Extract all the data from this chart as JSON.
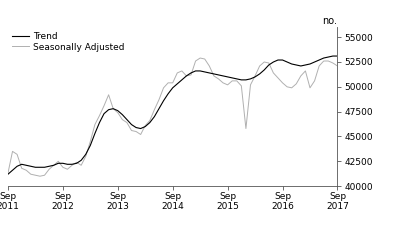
{
  "title": "",
  "ylabel_right": "no.",
  "ylim": [
    40000,
    56000
  ],
  "yticks": [
    40000,
    42500,
    45000,
    47500,
    50000,
    52500,
    55000
  ],
  "xlabel_dates": [
    "Sep\n2011",
    "Sep\n2012",
    "Sep\n2013",
    "Sep\n2014",
    "Sep\n2015",
    "Sep\n2016",
    "Sep\n2017"
  ],
  "trend_color": "#000000",
  "seasonal_color": "#b0b0b0",
  "trend_linewidth": 0.8,
  "seasonal_linewidth": 0.7,
  "legend_labels": [
    "Trend",
    "Seasonally Adjusted"
  ],
  "background_color": "#ffffff",
  "trend": [
    41200,
    41600,
    42000,
    42200,
    42100,
    42000,
    41900,
    41900,
    41900,
    42000,
    42100,
    42300,
    42300,
    42200,
    42200,
    42300,
    42600,
    43200,
    44100,
    45300,
    46400,
    47300,
    47700,
    47800,
    47600,
    47200,
    46700,
    46200,
    45900,
    45800,
    46000,
    46400,
    47000,
    47800,
    48600,
    49300,
    49900,
    50300,
    50700,
    51100,
    51400,
    51600,
    51600,
    51500,
    51400,
    51300,
    51200,
    51100,
    51000,
    50900,
    50800,
    50700,
    50700,
    50800,
    51000,
    51300,
    51700,
    52200,
    52500,
    52700,
    52700,
    52500,
    52300,
    52200,
    52100,
    52200,
    52300,
    52500,
    52700,
    52900,
    53000,
    53100,
    53100
  ],
  "seasonal": [
    41300,
    43500,
    43200,
    41800,
    41600,
    41200,
    41100,
    41000,
    41100,
    41700,
    42100,
    42500,
    41900,
    41700,
    42100,
    42400,
    42100,
    43000,
    44500,
    46200,
    47100,
    48100,
    49200,
    47800,
    47400,
    46700,
    46400,
    45600,
    45500,
    45200,
    46100,
    46600,
    47700,
    48700,
    49900,
    50400,
    50400,
    51400,
    51600,
    51100,
    51200,
    52600,
    52900,
    52800,
    52100,
    51100,
    50800,
    50400,
    50200,
    50600,
    50600,
    50100,
    45800,
    50200,
    51100,
    52100,
    52500,
    52400,
    51400,
    50900,
    50400,
    50000,
    49900,
    50300,
    51100,
    51600,
    49900,
    50600,
    52100,
    52600,
    52600,
    52400,
    52100
  ]
}
